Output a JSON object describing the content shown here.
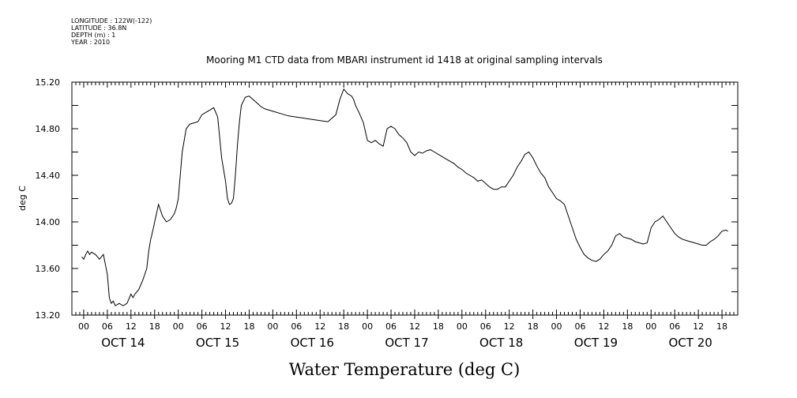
{
  "meta": {
    "longitude": "LONGITUDE : 122W(-122)",
    "latitude": "LATITUDE : 36.8N",
    "depth": "DEPTH (m) : 1",
    "year": "YEAR : 2010"
  },
  "chart_data": {
    "type": "line",
    "title": "Mooring M1 CTD data from MBARI instrument id 1418 at original sampling intervals",
    "xlabel": "Water Temperature (deg C)",
    "ylabel": "deg C",
    "ylim": [
      13.2,
      15.2
    ],
    "yticks": [
      "13.20",
      "13.60",
      "14.00",
      "14.40",
      "14.80",
      "15.20"
    ],
    "xlim_hours": [
      -3,
      166
    ],
    "hour_ticks": [
      "00",
      "06",
      "12",
      "18",
      "00",
      "06",
      "12",
      "18",
      "00",
      "06",
      "12",
      "18",
      "00",
      "06",
      "12",
      "18",
      "00",
      "06",
      "12",
      "18",
      "00",
      "06",
      "12",
      "18",
      "00",
      "06",
      "12",
      "18"
    ],
    "day_labels": [
      "OCT 14",
      "OCT 15",
      "OCT 16",
      "OCT 17",
      "OCT 18",
      "OCT 19",
      "OCT 20"
    ],
    "grid": false,
    "series": [
      {
        "name": "",
        "x": [
          -0.5,
          0,
          0.5,
          1,
          1.5,
          2,
          3,
          4,
          5,
          6,
          6.5,
          7,
          7.5,
          8,
          9,
          10,
          11,
          12,
          12.5,
          13,
          14,
          15,
          15.5,
          16,
          16.5,
          17,
          17.5,
          18,
          19,
          20,
          21,
          22,
          23,
          23.5,
          24,
          25,
          26,
          27,
          28,
          29,
          30,
          31,
          32,
          33,
          34,
          35,
          36,
          36.5,
          37,
          37.5,
          38,
          38.5,
          39,
          39.5,
          40,
          41,
          42,
          43,
          44,
          45,
          46,
          47,
          48,
          50,
          52,
          54,
          56,
          58,
          60,
          62,
          64,
          65,
          66,
          67,
          68,
          68.5,
          69,
          70,
          71,
          72,
          73,
          74,
          75,
          76,
          77,
          78,
          79,
          80,
          81,
          82,
          83,
          84,
          85,
          86,
          87,
          88,
          89,
          90,
          91,
          92,
          93,
          94,
          95,
          96,
          97,
          98,
          99,
          100,
          101,
          102,
          103,
          104,
          105,
          106,
          107,
          108,
          109,
          110,
          111,
          112,
          113,
          114,
          115,
          116,
          117,
          118,
          119,
          120,
          121,
          122,
          123,
          124,
          125,
          126,
          127,
          128,
          129,
          130,
          131,
          132,
          133,
          134,
          135,
          136,
          137,
          138,
          139,
          140,
          141,
          142,
          143,
          144,
          145,
          146,
          147,
          148,
          149,
          150,
          151,
          152,
          153,
          154,
          155,
          156,
          157,
          158,
          159,
          160,
          161,
          162,
          163,
          163.5
        ],
        "values": [
          13.7,
          13.68,
          13.72,
          13.75,
          13.72,
          13.74,
          13.72,
          13.68,
          13.72,
          13.55,
          13.35,
          13.3,
          13.32,
          13.28,
          13.3,
          13.28,
          13.3,
          13.38,
          13.35,
          13.38,
          13.42,
          13.5,
          13.55,
          13.6,
          13.75,
          13.85,
          13.92,
          14.0,
          14.15,
          14.05,
          14.0,
          14.02,
          14.07,
          14.12,
          14.2,
          14.6,
          14.8,
          14.84,
          14.85,
          14.86,
          14.92,
          14.94,
          14.96,
          14.98,
          14.9,
          14.55,
          14.35,
          14.2,
          14.15,
          14.16,
          14.2,
          14.4,
          14.65,
          14.85,
          15.0,
          15.07,
          15.08,
          15.05,
          15.02,
          14.99,
          14.97,
          14.96,
          14.95,
          14.93,
          14.91,
          14.9,
          14.89,
          14.88,
          14.87,
          14.86,
          14.92,
          15.05,
          15.14,
          15.1,
          15.08,
          15.05,
          15.0,
          14.93,
          14.85,
          14.7,
          14.68,
          14.7,
          14.67,
          14.65,
          14.8,
          14.82,
          14.8,
          14.75,
          14.72,
          14.68,
          14.6,
          14.57,
          14.6,
          14.59,
          14.61,
          14.62,
          14.6,
          14.58,
          14.56,
          14.54,
          14.52,
          14.5,
          14.47,
          14.45,
          14.42,
          14.4,
          14.38,
          14.35,
          14.36,
          14.33,
          14.3,
          14.28,
          14.28,
          14.3,
          14.3,
          14.35,
          14.4,
          14.47,
          14.52,
          14.58,
          14.6,
          14.55,
          14.48,
          14.42,
          14.38,
          14.3,
          14.25,
          14.2,
          14.18,
          14.15,
          14.05,
          13.95,
          13.85,
          13.78,
          13.72,
          13.69,
          13.67,
          13.66,
          13.68,
          13.72,
          13.75,
          13.8,
          13.88,
          13.9,
          13.87,
          13.86,
          13.85,
          13.83,
          13.82,
          13.81,
          13.82,
          13.95,
          14.0,
          14.02,
          14.05,
          14.0,
          13.95,
          13.9,
          13.87,
          13.85,
          13.84,
          13.83,
          13.82,
          13.81,
          13.8,
          13.8,
          13.83,
          13.85,
          13.88,
          13.92,
          13.93,
          13.92
        ]
      }
    ]
  }
}
